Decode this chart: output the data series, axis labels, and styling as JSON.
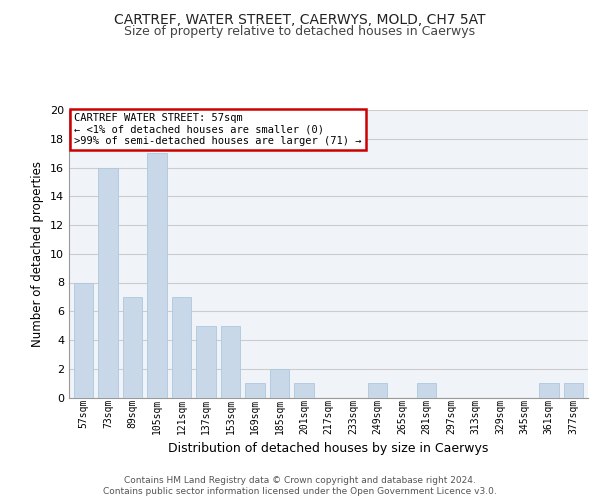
{
  "title": "CARTREF, WATER STREET, CAERWYS, MOLD, CH7 5AT",
  "subtitle": "Size of property relative to detached houses in Caerwys",
  "xlabel": "Distribution of detached houses by size in Caerwys",
  "ylabel": "Number of detached properties",
  "bar_labels": [
    "57sqm",
    "73sqm",
    "89sqm",
    "105sqm",
    "121sqm",
    "137sqm",
    "153sqm",
    "169sqm",
    "185sqm",
    "201sqm",
    "217sqm",
    "233sqm",
    "249sqm",
    "265sqm",
    "281sqm",
    "297sqm",
    "313sqm",
    "329sqm",
    "345sqm",
    "361sqm",
    "377sqm"
  ],
  "bar_values": [
    8,
    16,
    7,
    17,
    7,
    5,
    5,
    1,
    2,
    1,
    0,
    0,
    1,
    0,
    1,
    0,
    0,
    0,
    0,
    1,
    1
  ],
  "bar_color": "#c8d8e8",
  "bar_edge_color": "#aec8de",
  "annotation_box_text": "CARTREF WATER STREET: 57sqm\n← <1% of detached houses are smaller (0)\n>99% of semi-detached houses are larger (71) →",
  "annotation_box_edge_color": "#cc0000",
  "annotation_box_face_color": "#ffffff",
  "ylim": [
    0,
    20
  ],
  "yticks": [
    0,
    2,
    4,
    6,
    8,
    10,
    12,
    14,
    16,
    18,
    20
  ],
  "grid_color": "#cccccc",
  "background_color": "#f0f4f8",
  "title_fontsize": 10,
  "subtitle_fontsize": 9,
  "footer_line1": "Contains HM Land Registry data © Crown copyright and database right 2024.",
  "footer_line2": "Contains public sector information licensed under the Open Government Licence v3.0."
}
